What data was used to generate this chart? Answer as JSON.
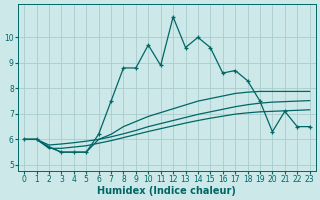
{
  "xlabel": "Humidex (Indice chaleur)",
  "background_color": "#cce8e8",
  "grid_color": "#aacccc",
  "line_color": "#006666",
  "xlim": [
    -0.5,
    23.5
  ],
  "ylim": [
    4.75,
    11.3
  ],
  "yticks": [
    5,
    6,
    7,
    8,
    9,
    10
  ],
  "xticks": [
    0,
    1,
    2,
    3,
    4,
    5,
    6,
    7,
    8,
    9,
    10,
    11,
    12,
    13,
    14,
    15,
    16,
    17,
    18,
    19,
    20,
    21,
    22,
    23
  ],
  "line_main_y": [
    6.0,
    6.0,
    5.7,
    5.5,
    5.5,
    5.5,
    6.2,
    7.5,
    8.8,
    8.8,
    9.7,
    8.9,
    10.8,
    9.6,
    10.0,
    9.6,
    8.6,
    8.7,
    8.3,
    7.5,
    6.3,
    7.1,
    6.5,
    6.5
  ],
  "line_top_y": [
    6.0,
    6.0,
    5.7,
    5.5,
    5.5,
    5.5,
    6.0,
    6.2,
    6.5,
    6.7,
    6.9,
    7.05,
    7.2,
    7.35,
    7.5,
    7.6,
    7.7,
    7.8,
    7.85,
    7.88,
    7.88,
    7.88,
    7.88,
    7.88
  ],
  "line_mid_y": [
    6.0,
    6.0,
    5.78,
    5.82,
    5.87,
    5.93,
    6.0,
    6.1,
    6.22,
    6.35,
    6.5,
    6.62,
    6.74,
    6.86,
    6.98,
    7.08,
    7.18,
    7.28,
    7.36,
    7.42,
    7.46,
    7.48,
    7.5,
    7.52
  ],
  "line_bot_y": [
    6.0,
    6.0,
    5.65,
    5.65,
    5.7,
    5.75,
    5.85,
    5.95,
    6.07,
    6.19,
    6.31,
    6.42,
    6.53,
    6.64,
    6.74,
    6.83,
    6.91,
    6.99,
    7.04,
    7.08,
    7.1,
    7.12,
    7.14,
    7.16
  ]
}
